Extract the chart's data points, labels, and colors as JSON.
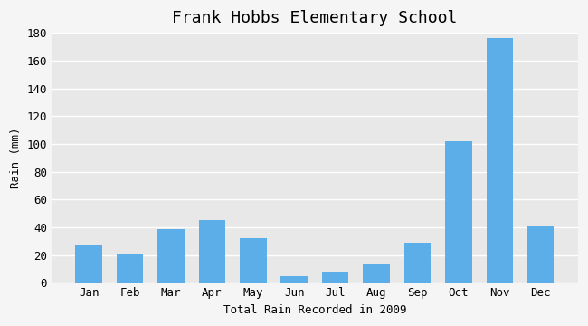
{
  "title": "Frank Hobbs Elementary School",
  "xlabel": "Total Rain Recorded in 2009",
  "ylabel": "Rain (mm)",
  "months": [
    "Jan",
    "Feb",
    "Mar",
    "Apr",
    "May",
    "Jun",
    "Jul",
    "Aug",
    "Sep",
    "Oct",
    "Nov",
    "Dec"
  ],
  "values": [
    28,
    21,
    39,
    45,
    32,
    5,
    8,
    14,
    29,
    102,
    176,
    41
  ],
  "bar_color": "#5BAEE8",
  "ylim": [
    0,
    180
  ],
  "yticks": [
    0,
    20,
    40,
    60,
    80,
    100,
    120,
    140,
    160,
    180
  ],
  "plot_bg_color": "#E8E8E8",
  "fig_bg_color": "#F5F5F5",
  "grid_color": "#FFFFFF",
  "title_fontsize": 13,
  "label_fontsize": 9,
  "tick_fontsize": 9,
  "font_family": "monospace"
}
